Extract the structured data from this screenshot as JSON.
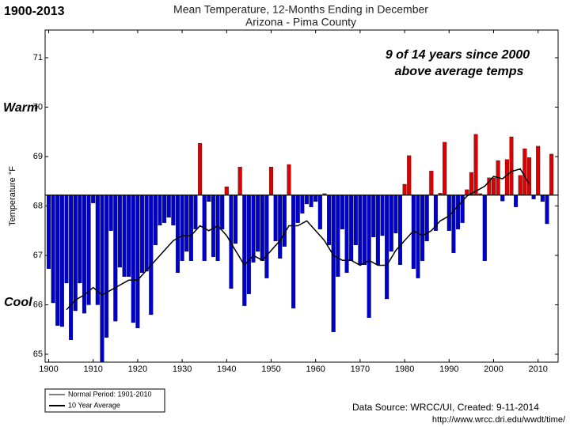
{
  "corner_label": "1900-2013",
  "chart_data": {
    "type": "bar",
    "title": "Mean Temperature, 12-Months Ending in December",
    "subtitle": "Arizona - Pima County",
    "ylabel": "Temperature °F",
    "annotation": [
      "9 of 14 years since 2000",
      "above average temps"
    ],
    "warm_label": "Warm",
    "cool_label": "Cool",
    "x": [
      1900,
      1901,
      1902,
      1903,
      1904,
      1905,
      1906,
      1907,
      1908,
      1909,
      1910,
      1911,
      1912,
      1913,
      1914,
      1915,
      1916,
      1917,
      1918,
      1919,
      1920,
      1921,
      1922,
      1923,
      1924,
      1925,
      1926,
      1927,
      1928,
      1929,
      1930,
      1931,
      1932,
      1933,
      1934,
      1935,
      1936,
      1937,
      1938,
      1939,
      1940,
      1941,
      1942,
      1943,
      1944,
      1945,
      1946,
      1947,
      1948,
      1949,
      1950,
      1951,
      1952,
      1953,
      1954,
      1955,
      1956,
      1957,
      1958,
      1959,
      1960,
      1961,
      1962,
      1963,
      1964,
      1965,
      1966,
      1967,
      1968,
      1969,
      1970,
      1971,
      1972,
      1973,
      1974,
      1975,
      1976,
      1977,
      1978,
      1979,
      1980,
      1981,
      1982,
      1983,
      1984,
      1985,
      1986,
      1987,
      1988,
      1989,
      1990,
      1991,
      1992,
      1993,
      1994,
      1995,
      1996,
      1997,
      1998,
      1999,
      2000,
      2001,
      2002,
      2003,
      2004,
      2005,
      2006,
      2007,
      2008,
      2009,
      2010,
      2011,
      2012,
      2013
    ],
    "values": [
      66.73,
      66.04,
      65.58,
      65.56,
      66.44,
      65.29,
      65.88,
      66.44,
      65.83,
      66.0,
      68.06,
      66.0,
      64.85,
      65.34,
      67.5,
      65.67,
      66.76,
      66.57,
      66.57,
      65.64,
      65.53,
      66.65,
      66.68,
      65.8,
      67.21,
      67.61,
      67.66,
      67.77,
      67.61,
      66.65,
      66.89,
      67.08,
      66.89,
      67.53,
      69.27,
      66.89,
      68.09,
      66.97,
      66.89,
      67.53,
      68.39,
      66.33,
      67.24,
      68.79,
      65.98,
      66.22,
      66.86,
      67.08,
      66.89,
      66.54,
      68.79,
      67.29,
      66.94,
      67.18,
      68.84,
      65.93,
      67.66,
      67.85,
      68.04,
      67.98,
      68.09,
      67.53,
      68.25,
      67.21,
      65.45,
      66.57,
      67.53,
      66.65,
      66.89,
      67.21,
      66.81,
      66.81,
      65.74,
      67.37,
      66.81,
      67.4,
      66.12,
      67.08,
      67.45,
      66.81,
      68.44,
      69.02,
      66.73,
      66.54,
      66.89,
      67.29,
      68.71,
      67.5,
      68.26,
      69.29,
      67.5,
      67.05,
      67.53,
      67.66,
      68.33,
      68.68,
      69.45,
      68.25,
      66.89,
      68.57,
      68.57,
      68.92,
      68.1,
      68.94,
      69.4,
      67.98,
      68.62,
      69.16,
      68.98,
      68.14,
      69.21,
      68.09,
      67.64,
      69.05
    ],
    "above_color": "#dd0000",
    "below_color": "#0000cc",
    "normal": {
      "name": "Normal Period: 1901-2010",
      "value": 68.22,
      "color": "#000000"
    },
    "average": {
      "name": "10 Year Average",
      "color": "#000000",
      "x": [
        1904,
        1906,
        1908,
        1910,
        1912,
        1914,
        1916,
        1918,
        1920,
        1922,
        1924,
        1926,
        1928,
        1930,
        1932,
        1934,
        1936,
        1938,
        1940,
        1942,
        1944,
        1946,
        1948,
        1950,
        1952,
        1954,
        1956,
        1958,
        1960,
        1962,
        1964,
        1966,
        1968,
        1970,
        1972,
        1974,
        1976,
        1978,
        1980,
        1982,
        1984,
        1986,
        1988,
        1990,
        1992,
        1994,
        1996,
        1998,
        2000,
        2002,
        2004,
        2006,
        2008
      ],
      "values": [
        65.9,
        66.1,
        66.2,
        66.35,
        66.2,
        66.3,
        66.4,
        66.5,
        66.5,
        66.7,
        66.9,
        67.1,
        67.3,
        67.4,
        67.4,
        67.6,
        67.5,
        67.6,
        67.4,
        67.1,
        66.8,
        67.0,
        66.9,
        67.1,
        67.3,
        67.6,
        67.6,
        67.7,
        67.5,
        67.3,
        67.0,
        66.9,
        66.9,
        66.8,
        66.9,
        66.8,
        66.8,
        67.1,
        67.3,
        67.5,
        67.4,
        67.5,
        67.7,
        67.8,
        68.0,
        68.2,
        68.3,
        68.4,
        68.6,
        68.55,
        68.7,
        68.75,
        68.45
      ]
    },
    "xlim": [
      1899.2,
      2014.5
    ],
    "ylim": [
      64.84,
      71.56
    ],
    "xticks": [
      1900,
      1910,
      1920,
      1930,
      1940,
      1950,
      1960,
      1970,
      1980,
      1990,
      2000,
      2010
    ],
    "yticks": [
      65,
      66,
      67,
      68,
      69,
      70,
      71
    ]
  },
  "source": "Data Source: WRCC/UI, Created: 9-11-2014",
  "url": "http://www.wrcc.dri.edu/wwdt/time/"
}
